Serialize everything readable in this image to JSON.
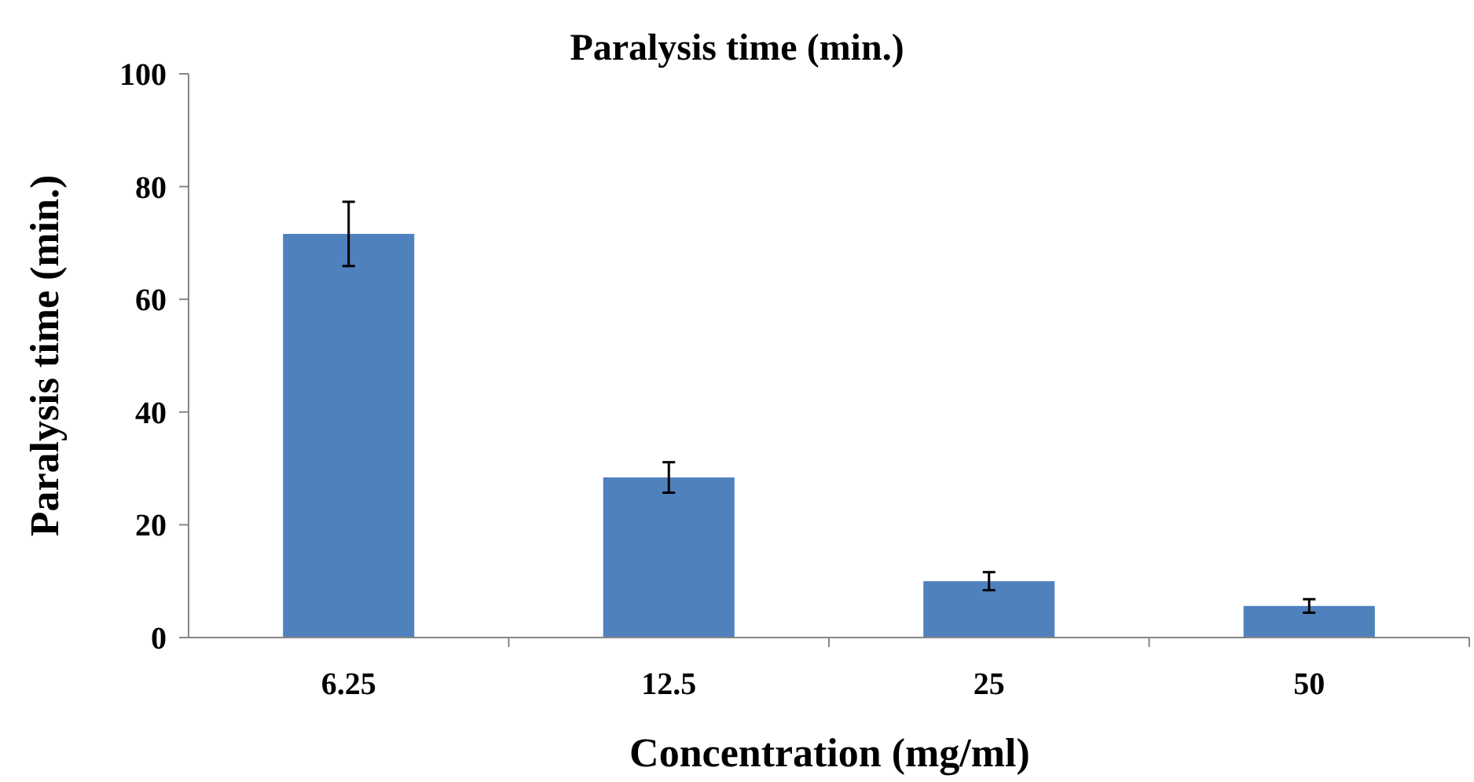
{
  "chart_data": {
    "type": "bar",
    "title": "Paralysis time (min.)",
    "xlabel": "Concentration (mg/ml)",
    "ylabel": "Paralysis time (min.)",
    "categories": [
      "6.25",
      "12.5",
      "25",
      "50"
    ],
    "values": [
      71.6,
      28.4,
      10.0,
      5.6
    ],
    "errors": [
      5.7,
      2.7,
      1.6,
      1.2
    ],
    "color": "#4f81bd",
    "ylim": [
      0,
      100
    ],
    "yticks": [
      0,
      20,
      40,
      60,
      80,
      100
    ],
    "grid": false
  }
}
